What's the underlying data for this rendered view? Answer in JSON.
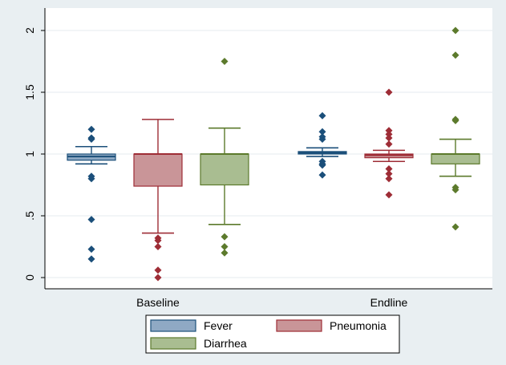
{
  "chart_data": {
    "type": "box",
    "categories": [
      "Baseline",
      "Endline"
    ],
    "ylim": [
      0,
      2.1
    ],
    "yticks": [
      {
        "value": 0,
        "label": "0"
      },
      {
        "value": 0.5,
        "label": ".5"
      },
      {
        "value": 1,
        "label": "1"
      },
      {
        "value": 1.5,
        "label": "1.5"
      },
      {
        "value": 2,
        "label": "2"
      }
    ],
    "grid": true,
    "legend_position": "bottom",
    "colors": {
      "background_outer": "#e9eff2",
      "plot_background": "#ffffff",
      "grid": "#e4ebef"
    },
    "series": [
      {
        "name": "Fever",
        "fill": "#8fa9c4",
        "line": "#1b4f7a",
        "boxes": [
          {
            "category": "Baseline",
            "whisker_low": 0.92,
            "q1": 0.95,
            "median": 0.98,
            "q3": 1.0,
            "whisker_high": 1.06,
            "outliers": [
              1.2,
              1.13,
              1.12,
              0.82,
              0.8,
              0.47,
              0.23,
              0.15
            ]
          },
          {
            "category": "Endline",
            "whisker_low": 0.98,
            "q1": 1.0,
            "median": 1.01,
            "q3": 1.02,
            "whisker_high": 1.05,
            "outliers": [
              1.31,
              1.18,
              1.14,
              1.12,
              0.94,
              0.92,
              0.91,
              0.83
            ]
          }
        ]
      },
      {
        "name": "Pneumonia",
        "fill": "#c99598",
        "line": "#9e2d36",
        "boxes": [
          {
            "category": "Baseline",
            "whisker_low": 0.36,
            "q1": 0.74,
            "median": 1.0,
            "q3": 1.0,
            "whisker_high": 1.28,
            "outliers": [
              0.32,
              0.3,
              0.25,
              0.06,
              0.0
            ]
          },
          {
            "category": "Endline",
            "whisker_low": 0.94,
            "q1": 0.97,
            "median": 0.99,
            "q3": 1.0,
            "whisker_high": 1.03,
            "outliers": [
              1.5,
              1.19,
              1.16,
              1.13,
              1.08,
              0.88,
              0.84,
              0.8,
              0.67
            ]
          }
        ]
      },
      {
        "name": "Diarrhea",
        "fill": "#a9bd91",
        "line": "#5c7a2c",
        "boxes": [
          {
            "category": "Baseline",
            "whisker_low": 0.43,
            "q1": 0.75,
            "median": 1.0,
            "q3": 1.0,
            "whisker_high": 1.21,
            "outliers": [
              1.75,
              0.33,
              0.25,
              0.2
            ]
          },
          {
            "category": "Endline",
            "whisker_low": 0.82,
            "q1": 0.92,
            "median": 1.0,
            "q3": 1.0,
            "whisker_high": 1.12,
            "outliers": [
              2.0,
              1.8,
              1.28,
              1.27,
              0.73,
              0.71,
              0.41
            ]
          }
        ]
      }
    ]
  }
}
